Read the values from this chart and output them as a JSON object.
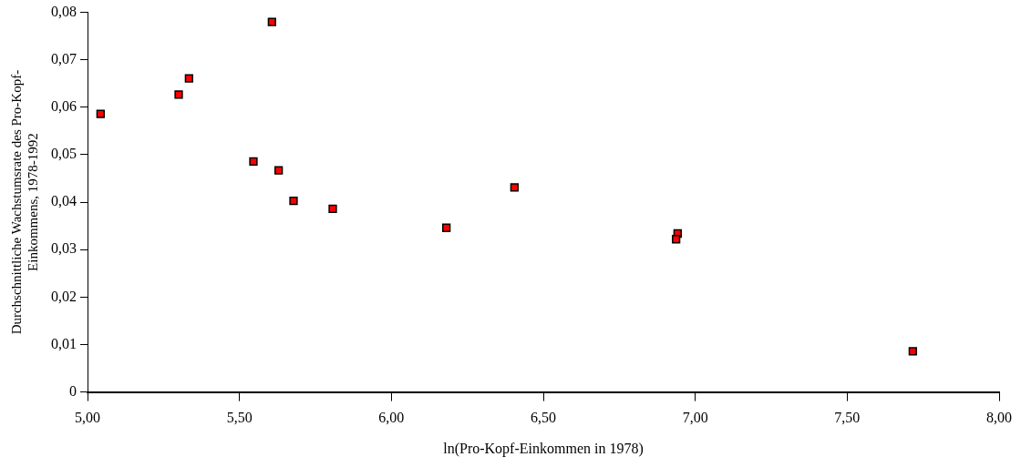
{
  "chart_data": {
    "type": "scatter",
    "xlabel": "ln(Pro-Kopf-Einkommen in 1978)",
    "ylabel": "Durchschnittliche Wachstumsrate des Pro-Kopf-Einkommens, 1978-1992",
    "x": [
      5.043,
      5.3,
      5.334,
      5.607,
      5.546,
      5.629,
      5.678,
      5.807,
      6.181,
      6.405,
      6.942,
      6.937,
      7.716
    ],
    "series": [
      {
        "color": "#ff0000",
        "values": [
          0.0586,
          0.0627,
          0.0661,
          0.078,
          0.0486,
          0.0467,
          0.0403,
          0.0386,
          0.0346,
          0.0431,
          0.0334,
          0.0322,
          0.0086
        ]
      }
    ],
    "xlim": [
      5,
      8
    ],
    "xticks": [
      {
        "value": 5,
        "label": "5,00"
      },
      {
        "value": 5.5,
        "label": "5,50"
      },
      {
        "value": 6,
        "label": "6,00"
      },
      {
        "value": 6.5,
        "label": "6,50"
      },
      {
        "value": 7,
        "label": "7,00"
      },
      {
        "value": 7.5,
        "label": "7,50"
      },
      {
        "value": 8,
        "label": "8,00"
      }
    ],
    "ylim": [
      0,
      0.08
    ],
    "yticks": [
      0,
      {
        "value": 0.01,
        "label": "0,01"
      },
      {
        "value": 0.02,
        "label": "0,02"
      },
      {
        "value": 0.03,
        "label": "0,03"
      },
      {
        "value": 0.04,
        "label": "0,04"
      },
      {
        "value": 0.05,
        "label": "0,05"
      },
      {
        "value": 0.06,
        "label": "0,06"
      },
      {
        "value": 0.07,
        "label": "0,07"
      },
      {
        "value": 0.08,
        "label": "0,08"
      }
    ],
    "grid": false,
    "legend": false,
    "marker": "square"
  }
}
